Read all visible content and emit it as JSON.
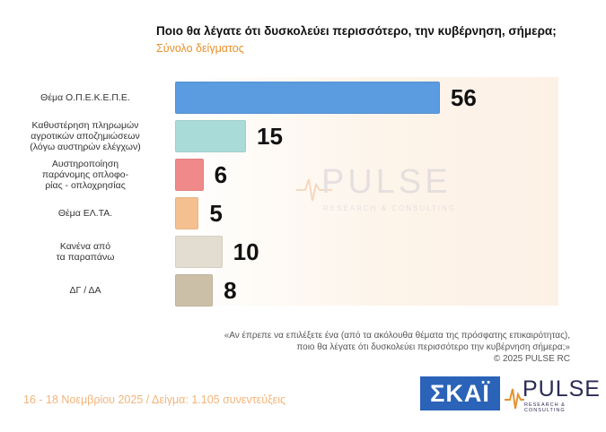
{
  "title": "Ποιο θα λέγατε ότι δυσκολεύει περισσότερο, την κυβέρνηση, σήμερα;",
  "subtitle": "Σύνολο δείγματος",
  "chart_data": {
    "type": "bar",
    "orientation": "horizontal",
    "categories": [
      "Θέμα Ο.Π.Ε.Κ.Ε.Π.Ε.",
      "Καθυστέρηση πληρωμών αγροτικών αποζημιώσεων (λόγω αυστηρών ελέγχων)",
      "Αυστηροποίηση παράνομης οπλοφορίας - οπλοχρησίας",
      "Θέμα ΕΛ.ΤΑ.",
      "Κανένα από τα παραπάνω",
      "ΔΓ / ΔΑ"
    ],
    "category_lines": [
      [
        "Θέμα Ο.Π.Ε.Κ.Ε.Π.Ε."
      ],
      [
        "Καθυστέρηση πληρωμών",
        "αγροτικών αποζημιώσεων",
        "(λόγω αυστηρών ελέγχων)"
      ],
      [
        "Αυστηροποίηση",
        "παράνομης οπλοφο-",
        "ρίας - οπλοχρησίας"
      ],
      [
        "Θέμα ΕΛ.ΤΑ."
      ],
      [
        "Κανένα από",
        "τα παραπάνω"
      ],
      [
        "ΔΓ / ΔΑ"
      ]
    ],
    "values": [
      56,
      15,
      6,
      5,
      10,
      8
    ],
    "value_labels": [
      "56",
      "15",
      "6",
      "5",
      "10",
      "8"
    ],
    "colors": [
      "#5b9be0",
      "#a9dcd8",
      "#f08a8a",
      "#f5c08f",
      "#e3dcd0",
      "#cbbfa8"
    ],
    "xlim": [
      0,
      60
    ],
    "grid": false,
    "legend": "none"
  },
  "note_lines": [
    "«Αν έπρεπε να επιλέξετε ένα (από τα ακόλουθα θέματα της πρόσφατης επικαιρότητας),",
    "ποιο θα λέγατε ότι δυσκολεύει περισσότερο την κυβέρνηση σήμερα;»",
    "© 2025 PULSE RC"
  ],
  "footer": "16 - 18 Νοεμβρίου 2025  /  Δείγμα:  1.105 συνεντεύξεις",
  "logos": {
    "skai": "ΣΚΑΪ",
    "pulse": "PULSE",
    "pulse_sub": "RESEARCH & CONSULTING",
    "watermark": "PULSE",
    "watermark_sub": "RESEARCH & CONSULTING"
  }
}
